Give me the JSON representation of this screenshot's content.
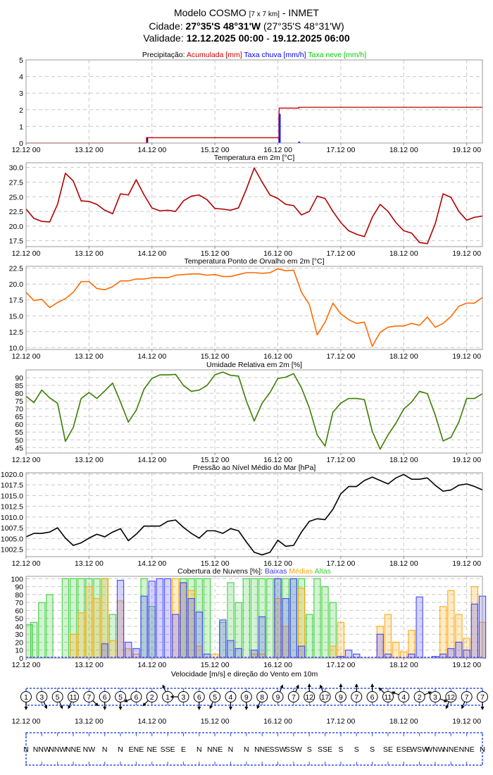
{
  "header": {
    "model": "Modelo COSMO",
    "resolution": "[7 x 7 km]",
    "source": "- INMET",
    "city_label": "Cidade:",
    "city_coords_bold": "27°35'S 48°31'W",
    "city_coords_paren": "(27°35'S 48°31'W)",
    "validity_label": "Validade:",
    "validity_start": "12.12.2025 00:00",
    "validity_sep": "-",
    "validity_end": "19.12.2025 06:00"
  },
  "colors": {
    "accumulated": "#cc0000",
    "rain_rate": "#0000ff",
    "snow_rate": "#00cc00",
    "temperature": "#b00000",
    "dewpoint": "#ff6a00",
    "humidity": "#3c7d00",
    "pressure": "#000000",
    "cloud_low": "#3a3aff",
    "cloud_mid": "#ffa500",
    "cloud_high": "#33cc33",
    "wind_box": "#3355ee"
  },
  "chart_data": {
    "x_hours_step": 3,
    "x_hours_max": 174,
    "x_tick_labels": [
      "12.12 00",
      "13.12 00",
      "14.12 00",
      "15.12 00",
      "16.12 00",
      "17.12 00",
      "18.12 00",
      "19.12 00"
    ],
    "x_tick_hours": [
      0,
      24,
      48,
      72,
      96,
      120,
      144,
      168
    ],
    "charts": [
      {
        "id": "precip",
        "type": "line",
        "title_parts": [
          {
            "text": "Precipitação: ",
            "color": "#000000"
          },
          {
            "text": "Acumulada [mm]",
            "color": "#cc0000"
          },
          {
            "text": " Taxa chuva [mm/h]",
            "color": "#0000ff"
          },
          {
            "text": " Taxa neve [mm/h]",
            "color": "#00cc00"
          }
        ],
        "ylim": [
          0,
          5
        ],
        "yticks": [
          0,
          1,
          2,
          3,
          4,
          5
        ],
        "tick_decimals": 0,
        "accumulated_steps": [
          [
            0,
            0
          ],
          [
            46,
            0
          ],
          [
            46,
            0.32
          ],
          [
            96.5,
            0.32
          ],
          [
            96.5,
            2.1
          ],
          [
            104,
            2.1
          ],
          [
            104,
            2.15
          ],
          [
            174,
            2.15
          ]
        ],
        "rain_rate_points": [
          [
            46,
            0.35
          ],
          [
            96.5,
            1.75
          ],
          [
            104,
            0.08
          ]
        ],
        "snow_rate_points": []
      },
      {
        "id": "temperature",
        "type": "line",
        "title_parts": [
          {
            "text": "Temperatura em 2m [°C]",
            "color": "#000000"
          }
        ],
        "ylim": [
          16.5,
          30.8
        ],
        "yticks": [
          17.5,
          20,
          22.5,
          25,
          27.5,
          30
        ],
        "tick_decimals": 1,
        "values": [
          22.9,
          21.3,
          20.8,
          20.7,
          23.7,
          29.0,
          27.7,
          24.3,
          24.2,
          23.7,
          22.7,
          22.1,
          25.5,
          25.3,
          27.9,
          25.3,
          23.1,
          22.6,
          22.7,
          22.5,
          24.3,
          25.1,
          25.3,
          24.5,
          23.0,
          22.9,
          22.7,
          23.1,
          26.3,
          29.9,
          27.5,
          25.3,
          24.7,
          23.7,
          23.5,
          21.9,
          22.5,
          25.1,
          24.7,
          22.5,
          20.6,
          19.2,
          18.6,
          18.2,
          21.5,
          23.7,
          22.5,
          20.6,
          19.2,
          18.8,
          17.2,
          17.0,
          20.4,
          25.5,
          24.9,
          22.5,
          21.0,
          21.5,
          21.7
        ]
      },
      {
        "id": "dewpoint",
        "type": "line",
        "title_parts": [
          {
            "text": "Temperatura Ponto de Orvalho em 2m [°C]",
            "color": "#000000"
          }
        ],
        "ylim": [
          9.7,
          22.8
        ],
        "yticks": [
          10,
          12.5,
          15,
          17.5,
          20,
          22.5
        ],
        "tick_decimals": 1,
        "values": [
          18.7,
          17.4,
          17.6,
          16.3,
          17.1,
          17.7,
          18.7,
          20.4,
          20.4,
          19.3,
          19.1,
          19.6,
          20.5,
          20.5,
          20.8,
          20.8,
          21.0,
          21.0,
          21.0,
          21.4,
          21.5,
          21.6,
          21.6,
          21.4,
          21.5,
          21.2,
          21.2,
          21.5,
          21.8,
          21.8,
          21.7,
          21.8,
          22.4,
          22.1,
          22.2,
          18.7,
          16.8,
          12.0,
          14.0,
          17.0,
          15.3,
          14.4,
          13.8,
          14.0,
          10.2,
          12.4,
          13.2,
          13.4,
          13.4,
          13.8,
          13.5,
          14.8,
          13.2,
          13.8,
          14.9,
          16.5,
          17.0,
          17.0,
          17.9
        ]
      },
      {
        "id": "humidity",
        "type": "line",
        "title_parts": [
          {
            "text": "Umidade Relativa em 2m [%]",
            "color": "#000000"
          }
        ],
        "ylim": [
          41.5,
          95
        ],
        "yticks": [
          45,
          50,
          55,
          60,
          65,
          70,
          75,
          80,
          85,
          90
        ],
        "tick_decimals": 0,
        "values": [
          78,
          74,
          82,
          77,
          73.6,
          49,
          58,
          76.6,
          80.4,
          76.6,
          81.5,
          86.5,
          74.3,
          61.4,
          69,
          82.7,
          89.5,
          91.8,
          91.8,
          92.1,
          85,
          81.2,
          82,
          85,
          91.8,
          93.6,
          91.5,
          91,
          75,
          62.1,
          73.6,
          80.4,
          89.5,
          90.3,
          92.6,
          83.5,
          70.6,
          53.1,
          46,
          67.8,
          73.6,
          76.6,
          76.6,
          75.9,
          55.4,
          44,
          53.1,
          60.7,
          69.8,
          74.3,
          81.2,
          79.7,
          66,
          49.3,
          51.6,
          61.4,
          76.6,
          76.6,
          79.7
        ]
      },
      {
        "id": "pressure",
        "type": "line",
        "title_parts": [
          {
            "text": "Pressão ao Nível Médio do Mar [hPa]",
            "color": "#000000"
          }
        ],
        "ylim": [
          1000.8,
          1020.3
        ],
        "yticks": [
          1002.5,
          1005,
          1007.5,
          1010,
          1012.5,
          1015,
          1017.5,
          1020
        ],
        "tick_decimals": 1,
        "values": [
          1005.4,
          1006.2,
          1006.2,
          1006.5,
          1007.5,
          1005.1,
          1003.4,
          1004.0,
          1005.1,
          1006.0,
          1005.4,
          1006.5,
          1007.3,
          1004.5,
          1006.0,
          1007.9,
          1007.9,
          1007.9,
          1009.0,
          1009.3,
          1007.6,
          1006.2,
          1005.1,
          1006.8,
          1006.8,
          1006.2,
          1007.3,
          1006.8,
          1004.2,
          1001.8,
          1001.2,
          1001.8,
          1004.6,
          1003.2,
          1003.4,
          1006.5,
          1009.0,
          1009.6,
          1009.4,
          1011.8,
          1015.4,
          1017.1,
          1017.1,
          1018.5,
          1019.3,
          1018.5,
          1017.7,
          1019.1,
          1019.9,
          1018.8,
          1018.8,
          1019.1,
          1017.4,
          1016.0,
          1016.3,
          1017.4,
          1017.7,
          1017.1,
          1016.3
        ]
      },
      {
        "id": "cloud",
        "type": "bar",
        "title_parts": [
          {
            "text": "Cobertura de Nuvens [%]: ",
            "color": "#000000"
          },
          {
            "text": "Baixas",
            "color": "#3a3aff"
          },
          {
            "text": " Médias",
            "color": "#ffa500"
          },
          {
            "text": " Altas",
            "color": "#33cc33"
          }
        ],
        "ylim": [
          0,
          103
        ],
        "yticks": [
          0,
          10,
          20,
          30,
          40,
          50,
          60,
          70,
          80,
          90,
          100
        ],
        "tick_decimals": 0,
        "series": [
          {
            "name": "Altas",
            "color_key": "cloud_high",
            "values": [
              42,
              45,
              70,
              80,
              0,
              100,
              100,
              100,
              100,
              100,
              100,
              55,
              0,
              0,
              0,
              100,
              65,
              0,
              0,
              0,
              100,
              100,
              100,
              100,
              0,
              45,
              95,
              70,
              100,
              100,
              100,
              100,
              100,
              100,
              100,
              100,
              55,
              100,
              90,
              70,
              0,
              0,
              0,
              0,
              0,
              0,
              0,
              0,
              0,
              0,
              0,
              0,
              0,
              0,
              0,
              0,
              0,
              0,
              0
            ]
          },
          {
            "name": "Médias",
            "color_key": "cloud_mid",
            "values": [
              0,
              0,
              0,
              0,
              0,
              0,
              30,
              57,
              90,
              75,
              100,
              22,
              72,
              12,
              5,
              0,
              0,
              0,
              0,
              100,
              95,
              85,
              15,
              0,
              5,
              0,
              0,
              0,
              0,
              5,
              5,
              0,
              75,
              40,
              0,
              88,
              0,
              0,
              0,
              15,
              45,
              0,
              0,
              0,
              0,
              40,
              55,
              20,
              8,
              35,
              0,
              0,
              0,
              65,
              85,
              55,
              25,
              90,
              45
            ]
          },
          {
            "name": "Baixas",
            "color_key": "cloud_low",
            "values": [
              0,
              0,
              0,
              0,
              0,
              0,
              0,
              0,
              0,
              0,
              18,
              0,
              98,
              20,
              12,
              78,
              97,
              100,
              100,
              55,
              95,
              75,
              58,
              5,
              0,
              48,
              22,
              12,
              0,
              10,
              52,
              0,
              100,
              75,
              100,
              15,
              0,
              0,
              0,
              0,
              2,
              10,
              5,
              0,
              0,
              30,
              5,
              0,
              0,
              5,
              77,
              0,
              2,
              5,
              12,
              20,
              10,
              68,
              78
            ]
          }
        ]
      }
    ],
    "wind": {
      "title": "Velocidade [m/s] e direção do Vento em 10m",
      "step_hours": 6,
      "speeds": [
        1,
        3,
        5,
        11,
        7,
        6,
        5,
        6,
        2,
        1,
        3,
        6,
        5,
        4,
        9,
        8,
        9,
        7,
        12,
        17,
        9,
        7,
        6,
        11,
        4,
        2,
        3,
        12,
        7,
        7
      ],
      "directions": [
        "N",
        "NNW",
        "NNW",
        "NNE",
        "NW",
        "N",
        "N",
        "ENE",
        "NE",
        "SSE",
        "E",
        "N",
        "NNE",
        "N",
        "N",
        "NNE",
        "SSW",
        "SSW",
        "S",
        "SSE",
        "S",
        "S",
        "S",
        "SE",
        "ESE",
        "WSW",
        "WNW",
        "NNE",
        "NNE",
        "N"
      ]
    }
  }
}
